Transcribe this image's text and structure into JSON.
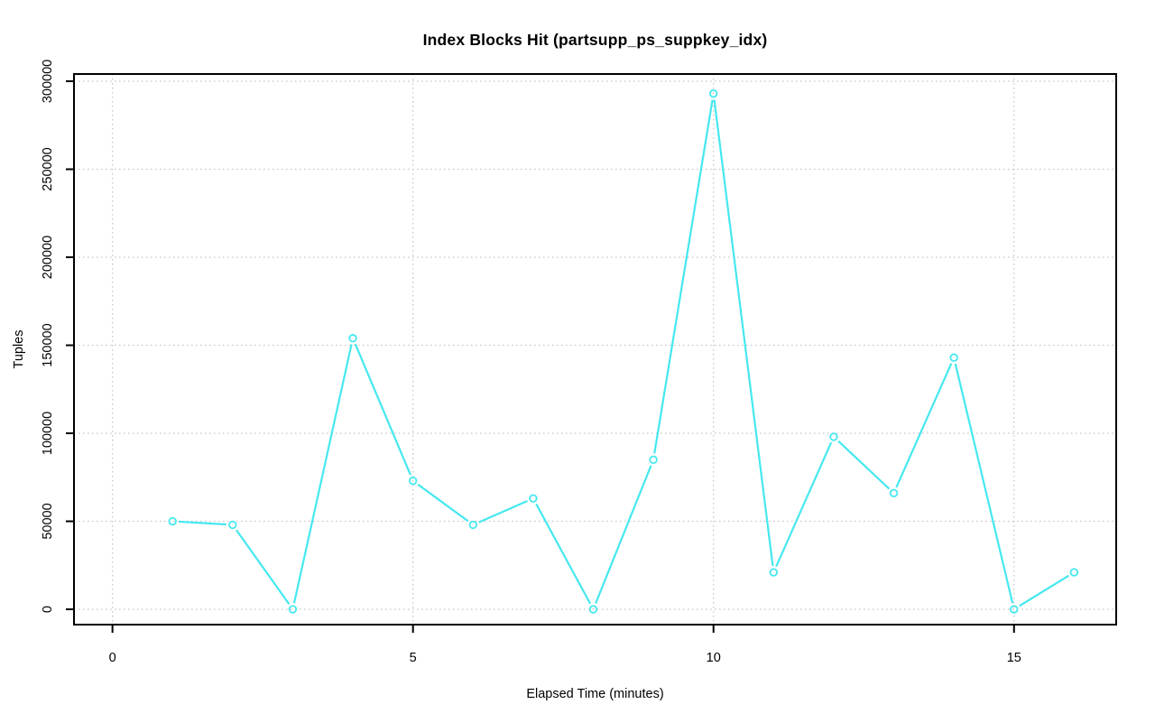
{
  "page": {
    "background": "#ffffff"
  },
  "chart_data": {
    "type": "line",
    "title": "Index Blocks Hit (partsupp_ps_suppkey_idx)",
    "xlabel": "Elapsed Time (minutes)",
    "ylabel": "Tuples",
    "x": [
      1,
      2,
      3,
      4,
      5,
      6,
      7,
      8,
      9,
      10,
      11,
      12,
      13,
      14,
      15,
      16
    ],
    "values": [
      50000,
      48000,
      0,
      154000,
      73000,
      48000,
      63000,
      0,
      85000,
      293000,
      21000,
      98000,
      66000,
      143000,
      0,
      21000
    ],
    "x_ticks": [
      0,
      5,
      10,
      15
    ],
    "y_ticks": [
      0,
      50000,
      100000,
      150000,
      200000,
      250000,
      300000
    ],
    "xlim": [
      -0.64,
      16.7
    ],
    "ylim": [
      -8700,
      304100
    ],
    "grid": true,
    "grid_style": "dotted",
    "legend": "none",
    "marker": "open-circle",
    "line_style": "points-and-lines",
    "colors": {
      "line": "#45e8ef",
      "marker": "#45e8ef",
      "grid": "#c3c3c3",
      "axis": "#000000",
      "text": "#000000",
      "background": "#ffffff"
    }
  }
}
